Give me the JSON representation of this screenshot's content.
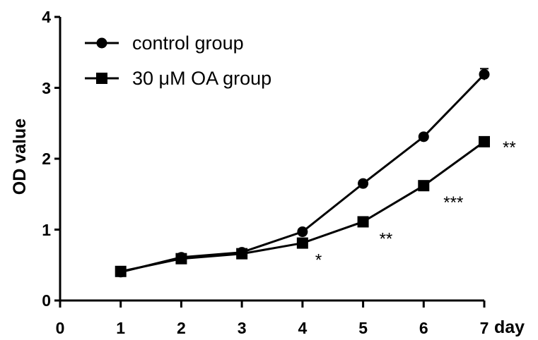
{
  "chart_data": {
    "type": "line",
    "x": [
      1,
      2,
      3,
      4,
      5,
      6,
      7
    ],
    "xlim": [
      0,
      7
    ],
    "ylim": [
      0,
      4
    ],
    "xticks": [
      "0",
      "1",
      "2",
      "3",
      "4",
      "5",
      "6",
      "7"
    ],
    "yticks": [
      "0",
      "1",
      "2",
      "3",
      "4"
    ],
    "xlabel": "day",
    "ylabel": "OD value",
    "legend_position": "top-left",
    "grid": false,
    "series": [
      {
        "name": "control group",
        "marker": "circle",
        "values": [
          0.4,
          0.61,
          0.68,
          0.97,
          1.65,
          2.31,
          3.19
        ],
        "error": [
          0.03,
          0.03,
          0.03,
          0.04,
          0.04,
          0.04,
          0.08
        ]
      },
      {
        "name": "30 μM OA group",
        "marker": "square",
        "values": [
          0.41,
          0.59,
          0.66,
          0.81,
          1.11,
          1.62,
          2.24
        ],
        "error": [
          0.02,
          0.02,
          0.02,
          0.03,
          0.03,
          0.03,
          0.04
        ]
      }
    ],
    "annotations": [
      {
        "x": 4,
        "text": "*"
      },
      {
        "x": 5,
        "text": "**"
      },
      {
        "x": 6,
        "text": "***"
      },
      {
        "x": 7,
        "text": "**"
      }
    ]
  }
}
